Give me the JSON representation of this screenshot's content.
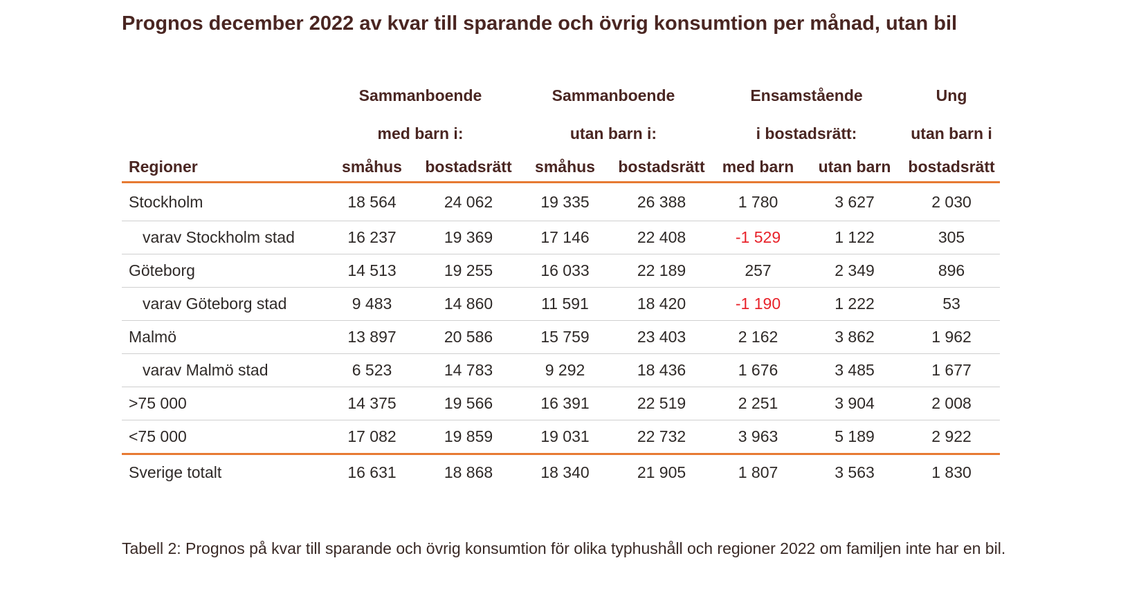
{
  "title": "Prognos december 2022 av kvar till sparande och övrig konsumtion per månad, utan bil",
  "header": {
    "groups_row1": [
      "Sammanboende",
      "Sammanboende",
      "Ensamstående",
      "Ung"
    ],
    "groups_row2": [
      "med barn i:",
      "utan barn i:",
      "i bostadsrätt:",
      "utan barn i"
    ],
    "region_label": "Regioner",
    "columns": [
      "småhus",
      "bostadsrätt",
      "småhus",
      "bostadsrätt",
      "med barn",
      "utan barn",
      "bostadsrätt"
    ]
  },
  "rows": [
    {
      "region": "Stockholm",
      "values": [
        "18 564",
        "24 062",
        "19 335",
        "26 388",
        "1 780",
        "3 627",
        "2 030"
      ]
    },
    {
      "region": "varav Stockholm stad",
      "values": [
        "16 237",
        "19 369",
        "17 146",
        "22 408",
        "-1 529",
        "1 122",
        "305"
      ]
    },
    {
      "region": "Göteborg",
      "values": [
        "14 513",
        "19 255",
        "16 033",
        "22 189",
        "257",
        "2 349",
        "896"
      ]
    },
    {
      "region": "varav Göteborg stad",
      "values": [
        "9 483",
        "14 860",
        "11 591",
        "18 420",
        "-1 190",
        "1 222",
        "53"
      ]
    },
    {
      "region": "Malmö",
      "values": [
        "13 897",
        "20 586",
        "15 759",
        "23 403",
        "2 162",
        "3 862",
        "1 962"
      ]
    },
    {
      "region": "varav Malmö stad",
      "values": [
        "6 523",
        "14 783",
        "9 292",
        "18 436",
        "1 676",
        "3 485",
        "1 677"
      ]
    },
    {
      "region": ">75 000",
      "values": [
        "14 375",
        "19 566",
        "16 391",
        "22 519",
        "2 251",
        "3 904",
        "2 008"
      ]
    },
    {
      "region": "<75 000",
      "values": [
        "17 082",
        "19 859",
        "19 031",
        "22 732",
        "3 963",
        "5 189",
        "2 922"
      ]
    },
    {
      "region": "Sverige totalt",
      "values": [
        "16 631",
        "18 868",
        "18 340",
        "21 905",
        "1 807",
        "3 563",
        "1 830"
      ]
    }
  ],
  "caption": "Tabell 2: Prognos på kvar till sparande och övrig konsumtion för olika typhushåll och regioner 2022 om familjen inte har en bil.",
  "colors": {
    "accent_rule": "#e77a33",
    "negative": "#e8222a",
    "title": "#4a2622"
  }
}
